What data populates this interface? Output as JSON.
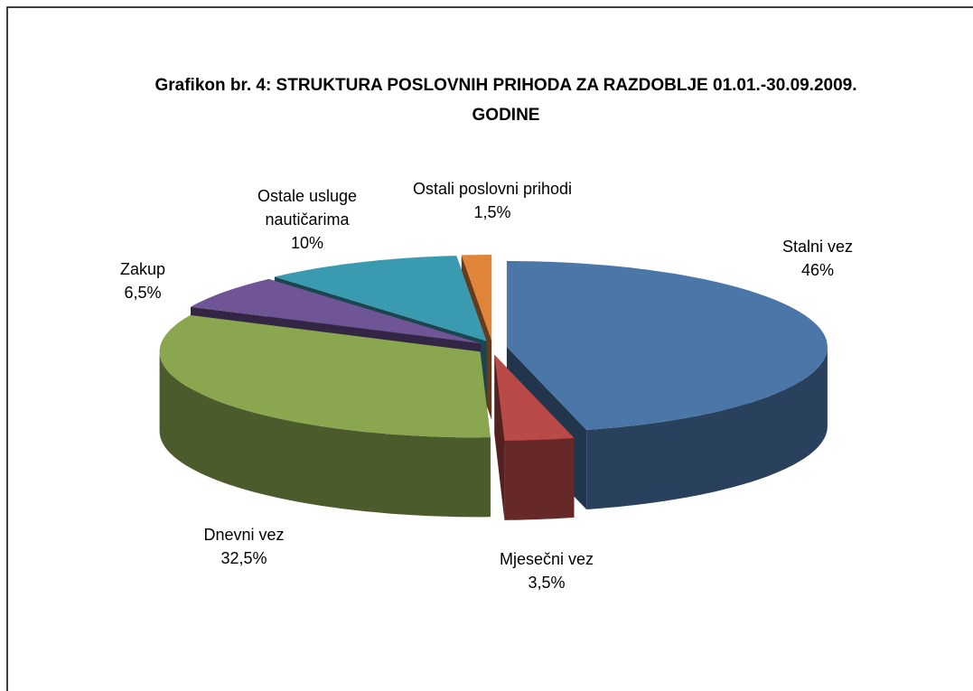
{
  "chart_data": {
    "type": "pie3d",
    "title": "Grafikon br. 4: STRUKTURA POSLOVNIH PRIHODA ZA RAZDOBLJE 01.01.-30.09.2009. GODINE",
    "categories": [
      "Stalni vez",
      "Mjesečni vez",
      "Dnevni vez",
      "Zakup",
      "Ostale usluge nautičarima",
      "Ostali poslovni prihodi"
    ],
    "values": [
      46,
      3.5,
      32.5,
      6.5,
      10,
      1.5
    ],
    "value_labels": [
      "46%",
      "3,5%",
      "32,5%",
      "6,5%",
      "10%",
      "1,5%"
    ],
    "colors": [
      "#4a76a8",
      "#b94a48",
      "#8aa64e",
      "#6f5596",
      "#3a9bb0",
      "#e0843a"
    ]
  }
}
